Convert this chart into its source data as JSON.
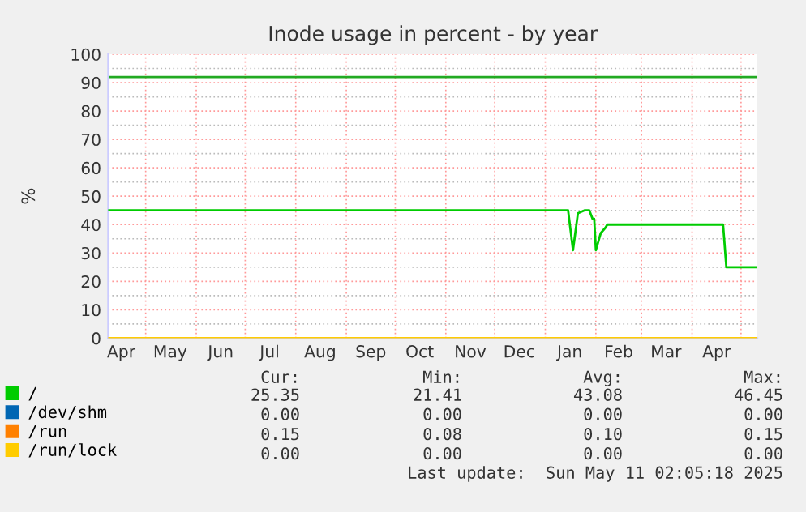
{
  "chart_data": {
    "type": "line",
    "title": "Inode usage in percent - by year",
    "ylabel": "%",
    "xlim": [
      "2024-04-08",
      "2025-05-11"
    ],
    "xticks": [
      {
        "value": "2024-04-16",
        "label": "Apr"
      },
      {
        "value": "2024-05-01",
        "label": null
      },
      {
        "value": "2024-05-16",
        "label": "May"
      },
      {
        "value": "2024-06-01",
        "label": null
      },
      {
        "value": "2024-06-16",
        "label": "Jun"
      },
      {
        "value": "2024-07-01",
        "label": null
      },
      {
        "value": "2024-07-16",
        "label": "Jul"
      },
      {
        "value": "2024-08-01",
        "label": null
      },
      {
        "value": "2024-08-16",
        "label": "Aug"
      },
      {
        "value": "2024-09-01",
        "label": null
      },
      {
        "value": "2024-09-16",
        "label": "Sep"
      },
      {
        "value": "2024-10-01",
        "label": null
      },
      {
        "value": "2024-10-16",
        "label": "Oct"
      },
      {
        "value": "2024-11-01",
        "label": null
      },
      {
        "value": "2024-11-16",
        "label": "Nov"
      },
      {
        "value": "2024-12-01",
        "label": null
      },
      {
        "value": "2024-12-16",
        "label": "Dec"
      },
      {
        "value": "2025-01-01",
        "label": null
      },
      {
        "value": "2025-01-16",
        "label": "Jan"
      },
      {
        "value": "2025-02-01",
        "label": null
      },
      {
        "value": "2025-02-15",
        "label": "Feb"
      },
      {
        "value": "2025-03-01",
        "label": null
      },
      {
        "value": "2025-03-16",
        "label": "Mar"
      },
      {
        "value": "2025-04-01",
        "label": null
      },
      {
        "value": "2025-04-16",
        "label": "Apr"
      },
      {
        "value": "2025-05-01",
        "label": null
      }
    ],
    "ylim": [
      0,
      100
    ],
    "yticks": [
      0,
      {
        "value": 5,
        "label": null
      },
      10,
      {
        "value": 15,
        "label": null
      },
      20,
      {
        "value": 25,
        "label": null
      },
      30,
      {
        "value": 35,
        "label": null
      },
      40,
      {
        "value": 45,
        "label": null
      },
      50,
      {
        "value": 55,
        "label": null
      },
      60,
      {
        "value": 65,
        "label": null
      },
      70,
      {
        "value": 75,
        "label": null
      },
      80,
      {
        "value": 85,
        "label": null
      },
      90,
      {
        "value": 95,
        "label": null
      },
      100
    ],
    "grid": true,
    "legend": "bottom left",
    "marker": "none",
    "line_style": "solid",
    "ref_lines": [
      {
        "axis": "y",
        "value": 92,
        "color": "#22aa22"
      }
    ],
    "series": [
      {
        "name": "/",
        "color": "#00cc00",
        "x": [
          "2024-04-08",
          "2025-01-15",
          "2025-01-18",
          "2025-01-21",
          "2025-01-25",
          "2025-01-28",
          "2025-01-30",
          "2025-01-31",
          "2025-02-01",
          "2025-02-04",
          "2025-02-07",
          "2025-02-08",
          "2025-04-20",
          "2025-04-22",
          "2025-05-10"
        ],
        "values": [
          45,
          45,
          31,
          44,
          45,
          45,
          42,
          42,
          31,
          37,
          39,
          40,
          40,
          25,
          25
        ]
      },
      {
        "name": "/dev/shm",
        "color": "#0066b3"
      },
      {
        "name": "/run",
        "color": "#ff8000"
      },
      {
        "name": "/run/lock",
        "color": "#ffcc00",
        "x": [
          "2024-04-08",
          "2025-05-10"
        ],
        "values": [
          0,
          0
        ]
      }
    ],
    "annotations": [
      "Cur:",
      "Min:",
      "Avg:",
      "Max:",
      "25.35",
      "21.41",
      "43.08",
      "46.45",
      "0.00",
      "0.00",
      "0.00",
      "0.00",
      "0.15",
      "0.08",
      "0.10",
      "0.15",
      "0.00",
      "0.00",
      "0.00",
      "0.00",
      "Last update:  Sun May 11 02:05:18 2025"
    ]
  }
}
